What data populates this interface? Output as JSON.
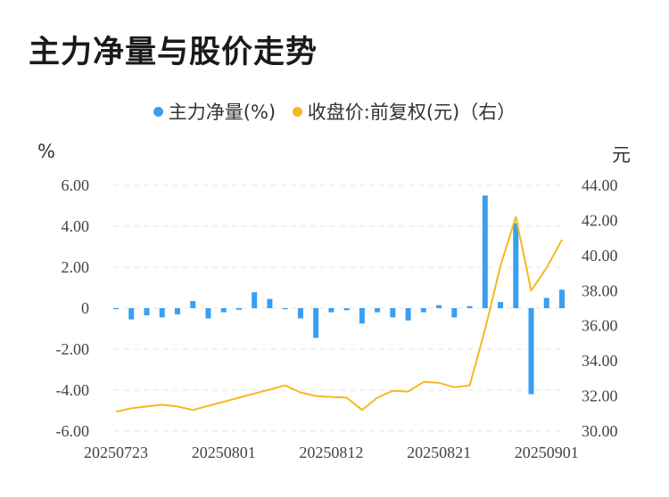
{
  "title": "主力净量与股价走势",
  "colors": {
    "bar": "#3a9ff0",
    "line": "#f5b920",
    "grid": "#e6e6e6"
  },
  "chart_data": {
    "type": "bar+line",
    "legend": [
      {
        "name": "主力净量(%)",
        "color": "#3a9ff0"
      },
      {
        "name": "收盘价:前复权(元)（右）",
        "color": "#f5b920"
      }
    ],
    "legend_position": "top-center",
    "left_unit": "%",
    "right_unit": "元",
    "left_axis": {
      "min": -6,
      "max": 6,
      "ticks": [
        "6.00",
        "4.00",
        "2.00",
        "0",
        "-2.00",
        "-4.00",
        "-6.00"
      ]
    },
    "right_axis": {
      "min": 30,
      "max": 44,
      "ticks": [
        "44.00",
        "42.00",
        "40.00",
        "38.00",
        "36.00",
        "34.00",
        "32.00",
        "30.00"
      ]
    },
    "grid": true,
    "x_tick_labels": [
      {
        "label": "20250723",
        "index": 0
      },
      {
        "label": "20250801",
        "index": 7
      },
      {
        "label": "20250812",
        "index": 14
      },
      {
        "label": "20250821",
        "index": 21
      },
      {
        "label": "20250901",
        "index": 28
      }
    ],
    "series": [
      {
        "name": "主力净量(%)",
        "type": "bar",
        "axis": "left",
        "values": [
          -0.05,
          -0.55,
          -0.35,
          -0.45,
          -0.3,
          0.35,
          -0.5,
          -0.2,
          -0.08,
          0.78,
          0.45,
          -0.05,
          -0.5,
          -1.45,
          -0.2,
          -0.1,
          -0.75,
          -0.2,
          -0.45,
          -0.6,
          -0.2,
          0.15,
          -0.45,
          0.1,
          5.5,
          0.3,
          4.15,
          -4.2,
          0.5,
          0.9
        ]
      },
      {
        "name": "收盘价:前复权(元)（右）",
        "type": "line",
        "axis": "right",
        "points": [
          {
            "i": 0,
            "v": 31.1
          },
          {
            "i": 1,
            "v": 31.3
          },
          {
            "i": 2,
            "v": 31.4
          },
          {
            "i": 3,
            "v": 31.5
          },
          {
            "i": 4,
            "v": 31.4
          },
          {
            "i": 5,
            "v": 31.2
          },
          {
            "i": 11,
            "v": 32.6
          },
          {
            "i": 12,
            "v": 32.2
          },
          {
            "i": 13,
            "v": 32.0
          },
          {
            "i": 14,
            "v": 31.95
          },
          {
            "i": 15,
            "v": 31.9
          },
          {
            "i": 16,
            "v": 31.2
          },
          {
            "i": 17,
            "v": 31.9
          },
          {
            "i": 18,
            "v": 32.3
          },
          {
            "i": 19,
            "v": 32.25
          },
          {
            "i": 20,
            "v": 32.8
          },
          {
            "i": 21,
            "v": 32.75
          },
          {
            "i": 22,
            "v": 32.5
          },
          {
            "i": 23,
            "v": 32.6
          },
          {
            "i": 24,
            "v": 35.8
          },
          {
            "i": 25,
            "v": 39.4
          },
          {
            "i": 26,
            "v": 42.2
          },
          {
            "i": 27,
            "v": 38.0
          },
          {
            "i": 28,
            "v": 39.3
          },
          {
            "i": 29,
            "v": 40.9
          }
        ]
      }
    ]
  }
}
